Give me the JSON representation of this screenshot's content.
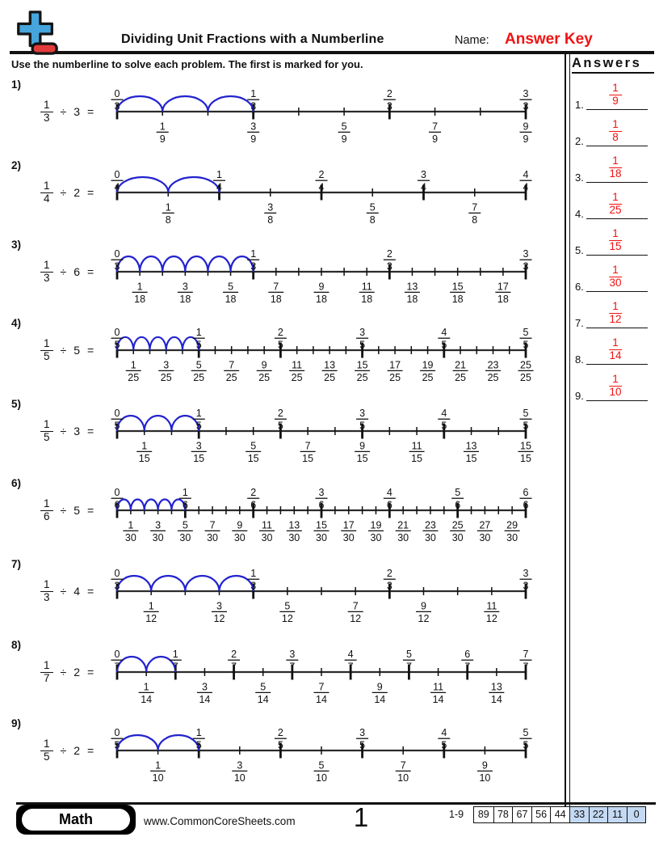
{
  "header": {
    "title": "Dividing Unit Fractions with a Numberline",
    "name_label": "Name:",
    "answer_key": "Answer Key",
    "instruction": "Use the numberline to solve each problem. The first is marked for you."
  },
  "answers_panel": {
    "title": "Answers",
    "items": [
      {
        "n": "1.",
        "frac": "1/9"
      },
      {
        "n": "2.",
        "frac": "1/8"
      },
      {
        "n": "3.",
        "frac": "1/18"
      },
      {
        "n": "4.",
        "frac": "1/25"
      },
      {
        "n": "5.",
        "frac": "1/15"
      },
      {
        "n": "6.",
        "frac": "1/30"
      },
      {
        "n": "7.",
        "frac": "1/12"
      },
      {
        "n": "8.",
        "frac": "1/14"
      },
      {
        "n": "9.",
        "frac": "1/10"
      }
    ]
  },
  "problems": [
    {
      "label": "1)",
      "dividend": "1/3",
      "op": "÷",
      "divisor": "3",
      "eq": "=",
      "subdivisions": 9,
      "major_every": 3,
      "arcs": 3,
      "top_labels": [
        "0/3",
        "1/3",
        "2/3",
        "3/3"
      ],
      "bottom_labels": [
        "1/9",
        "3/9",
        "5/9",
        "7/9",
        "9/9"
      ]
    },
    {
      "label": "2)",
      "dividend": "1/4",
      "op": "÷",
      "divisor": "2",
      "eq": "=",
      "subdivisions": 8,
      "major_every": 2,
      "arcs": 2,
      "top_labels": [
        "0/4",
        "1/4",
        "2/4",
        "3/4",
        "4/4"
      ],
      "bottom_labels": [
        "1/8",
        "3/8",
        "5/8",
        "7/8"
      ]
    },
    {
      "label": "3)",
      "dividend": "1/3",
      "op": "÷",
      "divisor": "6",
      "eq": "=",
      "subdivisions": 18,
      "major_every": 6,
      "arcs": 6,
      "top_labels": [
        "0/3",
        "1/3",
        "2/3",
        "3/3"
      ],
      "bottom_labels": [
        "1/18",
        "3/18",
        "5/18",
        "7/18",
        "9/18",
        "11/18",
        "13/18",
        "15/18",
        "17/18"
      ]
    },
    {
      "label": "4)",
      "dividend": "1/5",
      "op": "÷",
      "divisor": "5",
      "eq": "=",
      "subdivisions": 25,
      "major_every": 5,
      "arcs": 5,
      "top_labels": [
        "0/5",
        "1/5",
        "2/5",
        "3/5",
        "4/5",
        "5/5"
      ],
      "bottom_labels": [
        "1/25",
        "3/25",
        "5/25",
        "7/25",
        "9/25",
        "11/25",
        "13/25",
        "15/25",
        "17/25",
        "19/25",
        "21/25",
        "23/25",
        "25/25"
      ]
    },
    {
      "label": "5)",
      "dividend": "1/5",
      "op": "÷",
      "divisor": "3",
      "eq": "=",
      "subdivisions": 15,
      "major_every": 3,
      "arcs": 3,
      "top_labels": [
        "0/5",
        "1/5",
        "2/5",
        "3/5",
        "4/5",
        "5/5"
      ],
      "bottom_labels": [
        "1/15",
        "3/15",
        "5/15",
        "7/15",
        "9/15",
        "11/15",
        "13/15",
        "15/15"
      ]
    },
    {
      "label": "6)",
      "dividend": "1/6",
      "op": "÷",
      "divisor": "5",
      "eq": "=",
      "subdivisions": 30,
      "major_every": 5,
      "arcs": 5,
      "top_labels": [
        "0/6",
        "1/6",
        "2/6",
        "3/6",
        "4/6",
        "5/6",
        "6/6"
      ],
      "bottom_labels": [
        "1/30",
        "3/30",
        "5/30",
        "7/30",
        "9/30",
        "11/30",
        "13/30",
        "15/30",
        "17/30",
        "19/30",
        "21/30",
        "23/30",
        "25/30",
        "27/30",
        "29/30"
      ]
    },
    {
      "label": "7)",
      "dividend": "1/3",
      "op": "÷",
      "divisor": "4",
      "eq": "=",
      "subdivisions": 12,
      "major_every": 4,
      "arcs": 4,
      "top_labels": [
        "0/3",
        "1/3",
        "2/3",
        "3/3"
      ],
      "bottom_labels": [
        "1/12",
        "3/12",
        "5/12",
        "7/12",
        "9/12",
        "11/12"
      ]
    },
    {
      "label": "8)",
      "dividend": "1/7",
      "op": "÷",
      "divisor": "2",
      "eq": "=",
      "subdivisions": 14,
      "major_every": 2,
      "arcs": 2,
      "top_labels": [
        "0/7",
        "1/7",
        "2/7",
        "3/7",
        "4/7",
        "5/7",
        "6/7",
        "7/7"
      ],
      "bottom_labels": [
        "1/14",
        "3/14",
        "5/14",
        "7/14",
        "9/14",
        "11/14",
        "13/14"
      ]
    },
    {
      "label": "9)",
      "dividend": "1/5",
      "op": "÷",
      "divisor": "2",
      "eq": "=",
      "subdivisions": 10,
      "major_every": 2,
      "arcs": 2,
      "top_labels": [
        "0/5",
        "1/5",
        "2/5",
        "3/5",
        "4/5",
        "5/5"
      ],
      "bottom_labels": [
        "1/10",
        "3/10",
        "5/10",
        "7/10",
        "9/10"
      ]
    }
  ],
  "footer": {
    "brand": "Math",
    "website": "www.CommonCoreSheets.com",
    "page": "1",
    "range_label": "1-9",
    "scores": [
      {
        "v": "89",
        "hl": false
      },
      {
        "v": "78",
        "hl": false
      },
      {
        "v": "67",
        "hl": false
      },
      {
        "v": "56",
        "hl": false
      },
      {
        "v": "44",
        "hl": false
      },
      {
        "v": "33",
        "hl": true
      },
      {
        "v": "22",
        "hl": true
      },
      {
        "v": "11",
        "hl": true
      },
      {
        "v": "0",
        "hl": true
      }
    ]
  },
  "colors": {
    "accent_red": "#f11212",
    "arc_blue": "#2323cf",
    "score_highlight": "#c4d9f3",
    "logo_blue": "#45a5dc",
    "logo_red": "#e23b3b"
  }
}
